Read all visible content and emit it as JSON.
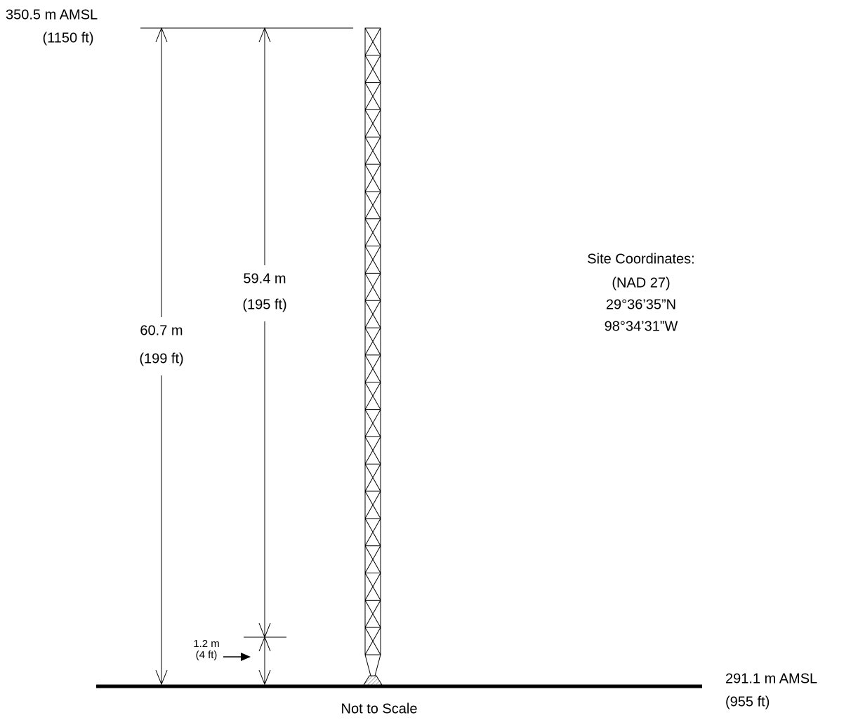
{
  "top_elevation": {
    "metric": "350.5 m AMSL",
    "imperial": "(1150 ft)"
  },
  "overall_height": {
    "metric": "60.7 m",
    "imperial": "(199 ft)"
  },
  "tower_height": {
    "metric": "59.4 m",
    "imperial": "(195 ft)"
  },
  "base_height": {
    "metric": "1.2 m",
    "imperial": "(4 ft)"
  },
  "site_coordinates": {
    "title": "Site Coordinates:",
    "datum": "(NAD 27)",
    "latitude": "29°36’35”N",
    "longitude": "98°34’31”W"
  },
  "ground_elevation": {
    "metric": "291.1 m AMSL",
    "imperial": "(955 ft)"
  },
  "note": "Not to Scale"
}
